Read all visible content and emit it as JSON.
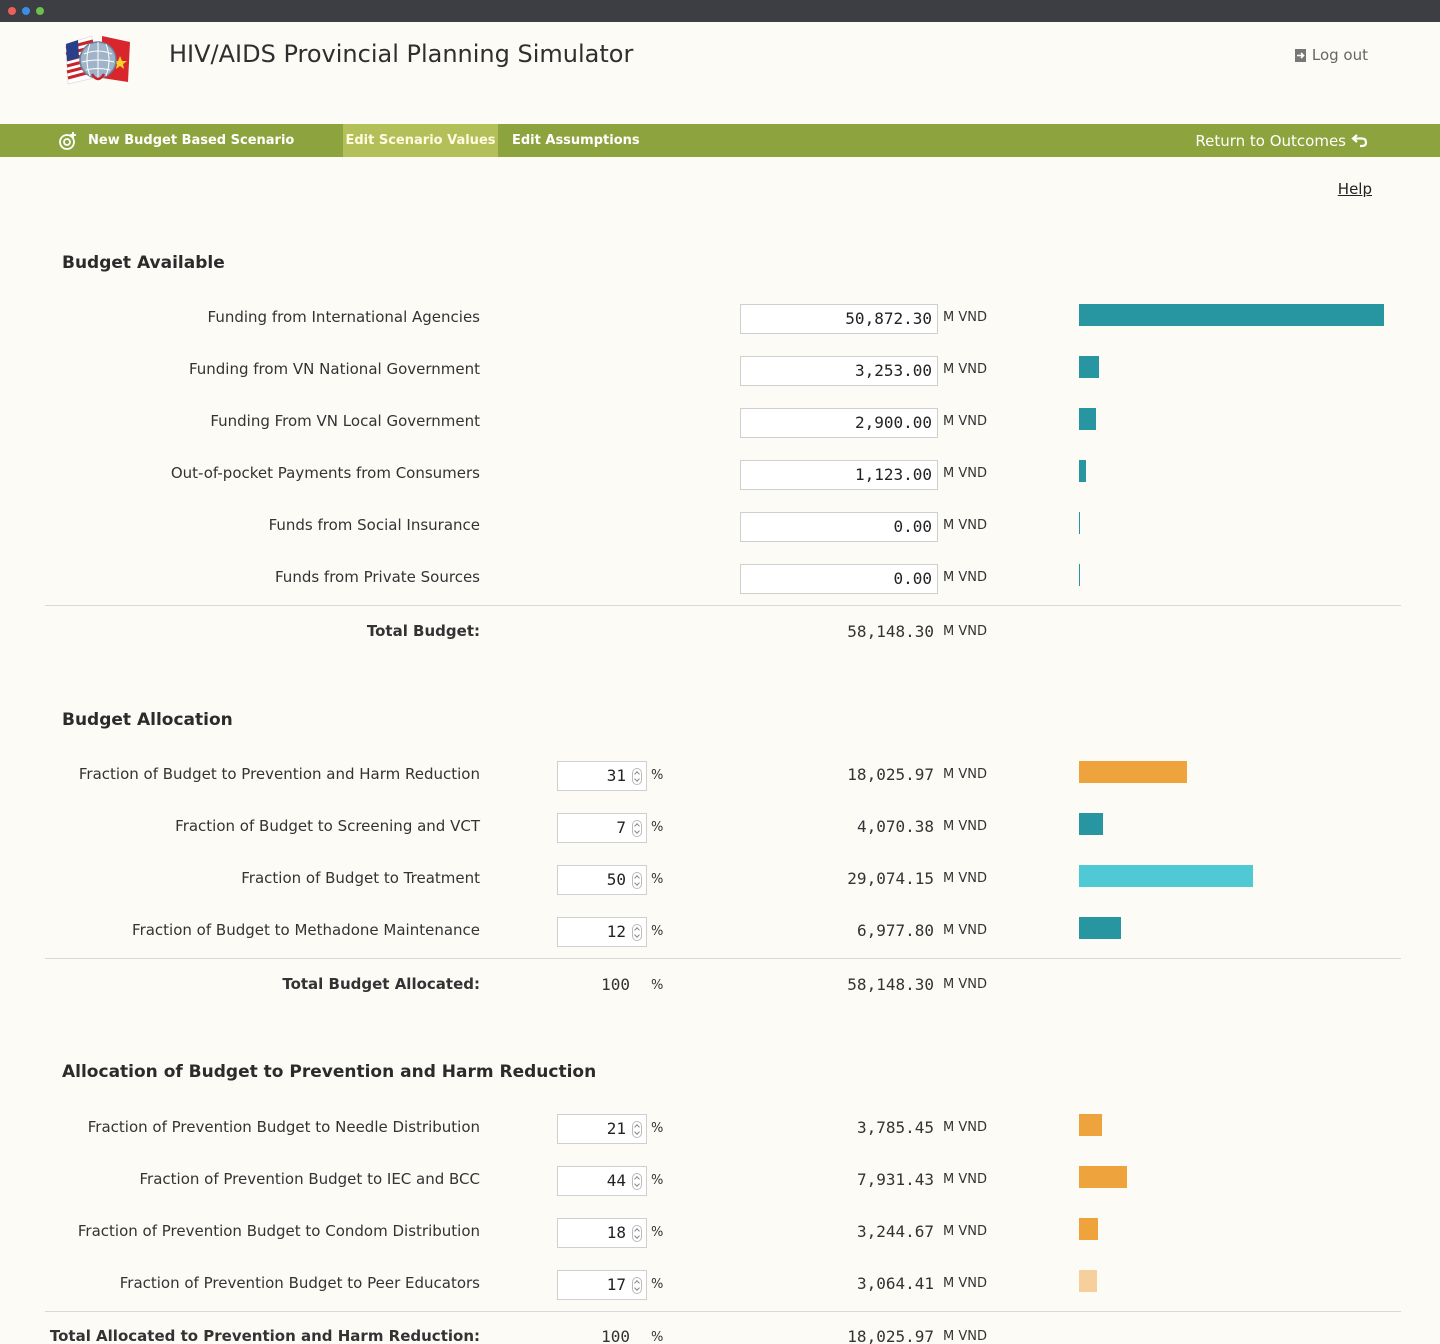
{
  "header": {
    "title": "HIV/AIDS Provincial Planning Simulator",
    "logout_label": "Log out"
  },
  "nav": {
    "new_scenario": "New Budget Based Scenario",
    "edit_values": "Edit Scenario Values",
    "edit_assumptions": "Edit Assumptions",
    "return_outcomes": "Return to Outcomes"
  },
  "help_label": "Help",
  "unit": "M VND",
  "pct_unit": "%",
  "colors": {
    "teal": "#2896a0",
    "light_teal": "#4fc9d4",
    "orange": "#efa33c",
    "light_orange": "#f6cf9b",
    "nav_green": "#8da33d"
  },
  "budget_available": {
    "title": "Budget Available",
    "rows": [
      {
        "label": "Funding from International Agencies",
        "value": "50,872.30",
        "amount": 50872.3
      },
      {
        "label": "Funding from VN National Government",
        "value": "3,253.00",
        "amount": 3253.0
      },
      {
        "label": "Funding From VN Local Government",
        "value": "2,900.00",
        "amount": 2900.0
      },
      {
        "label": "Out-of-pocket Payments from Consumers",
        "value": "1,123.00",
        "amount": 1123.0
      },
      {
        "label": "Funds from Social Insurance",
        "value": "0.00",
        "amount": 0
      },
      {
        "label": "Funds from Private Sources",
        "value": "0.00",
        "amount": 0
      }
    ],
    "total_label": "Total Budget:",
    "total_value": "58,148.30"
  },
  "budget_allocation": {
    "title": "Budget Allocation",
    "rows": [
      {
        "label": "Fraction of Budget to Prevention and Harm Reduction",
        "pct": "31",
        "value": "18,025.97",
        "amount": 18025.97,
        "color": "#efa33c"
      },
      {
        "label": "Fraction of Budget to Screening and VCT",
        "pct": "7",
        "value": "4,070.38",
        "amount": 4070.38,
        "color": "#2896a0"
      },
      {
        "label": "Fraction of Budget to Treatment",
        "pct": "50",
        "value": "29,074.15",
        "amount": 29074.15,
        "color": "#4fc9d4"
      },
      {
        "label": "Fraction of Budget to Methadone Maintenance",
        "pct": "12",
        "value": "6,977.80",
        "amount": 6977.8,
        "color": "#2896a0"
      }
    ],
    "total_label": "Total Budget Allocated:",
    "total_pct": "100",
    "total_value": "58,148.30"
  },
  "prevention_allocation": {
    "title": "Allocation of Budget to Prevention and Harm Reduction",
    "rows": [
      {
        "label": "Fraction of Prevention Budget to Needle Distribution",
        "pct": "21",
        "value": "3,785.45",
        "amount": 3785.45,
        "color": "#efa33c"
      },
      {
        "label": "Fraction of Prevention Budget to IEC and BCC",
        "pct": "44",
        "value": "7,931.43",
        "amount": 7931.43,
        "color": "#efa33c"
      },
      {
        "label": "Fraction of Prevention Budget to Condom Distribution",
        "pct": "18",
        "value": "3,244.67",
        "amount": 3244.67,
        "color": "#efa33c"
      },
      {
        "label": "Fraction of Prevention Budget to Peer Educators",
        "pct": "17",
        "value": "3,064.41",
        "amount": 3064.41,
        "color": "#f6cf9b"
      }
    ],
    "total_label": "Total Allocated to Prevention and Harm Reduction:",
    "total_pct": "100",
    "total_value": "18,025.97"
  }
}
